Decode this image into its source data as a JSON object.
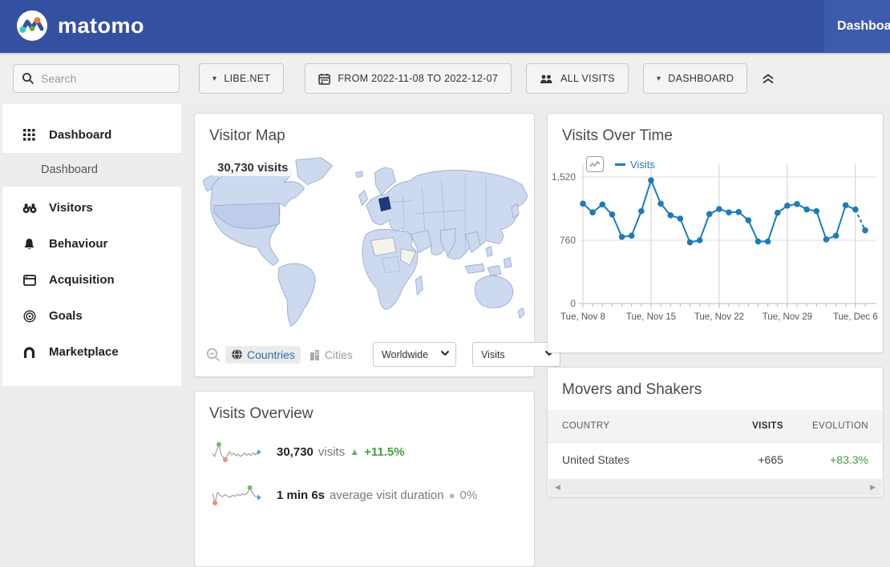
{
  "navbar": {
    "brand": "matomo",
    "menu": [
      {
        "label": "Dashboard"
      }
    ]
  },
  "toolbar": {
    "search_placeholder": "Search",
    "site_selector": "LIBE.NET",
    "date_range": "FROM 2022-11-08 TO 2022-12-07",
    "segment": "ALL VISITS",
    "dashboard_selector": "DASHBOARD"
  },
  "sidebar": {
    "items": [
      {
        "label": "Dashboard"
      },
      {
        "label": "Visitors"
      },
      {
        "label": "Behaviour"
      },
      {
        "label": "Acquisition"
      },
      {
        "label": "Goals"
      },
      {
        "label": "Marketplace"
      }
    ],
    "sub_item": {
      "label": "Dashboard"
    }
  },
  "visitor_map": {
    "title": "Visitor Map",
    "overlay_label": "30,730 visits",
    "countries_toggle": "Countries",
    "cities_toggle": "Cities",
    "region_select": "Worldwide",
    "metric_select": "Visits"
  },
  "visits_over_time": {
    "title": "Visits Over Time",
    "legend": "Visits"
  },
  "movers": {
    "title": "Movers and Shakers",
    "col_country": "COUNTRY",
    "col_visits": "VISITS",
    "col_evolution": "EVOLUTION",
    "rows": [
      {
        "country": "United States",
        "visits": "+665",
        "evolution": "+83.3%"
      }
    ]
  },
  "visits_overview": {
    "title": "Visits Overview",
    "rows": [
      {
        "value": "30,730",
        "label": "visits",
        "change": "+11.5%"
      },
      {
        "value": "1 min 6s",
        "label": "average visit duration",
        "change": "0%"
      }
    ]
  },
  "colors": {
    "navbar": "#3450a1",
    "navbar_active_item": "#3d5bad",
    "chart_line": "#1d7cb8",
    "positive_green": "#3f9f3f",
    "map_fill": "#cdd9ef",
    "map_highlight": "#1e3a7c"
  },
  "chart_data": [
    {
      "type": "line",
      "title": "Visits Over Time",
      "series": [
        {
          "name": "Visits",
          "values": [
            1200,
            1095,
            1190,
            1070,
            800,
            815,
            1110,
            1480,
            1200,
            1060,
            1020,
            735,
            760,
            1075,
            1135,
            1095,
            1100,
            1000,
            745,
            745,
            1090,
            1175,
            1195,
            1130,
            1110,
            770,
            815,
            1180,
            1130,
            880
          ]
        }
      ],
      "x": [
        "Nov 8",
        "Nov 9",
        "Nov 10",
        "Nov 11",
        "Nov 12",
        "Nov 13",
        "Nov 14",
        "Nov 15",
        "Nov 16",
        "Nov 17",
        "Nov 18",
        "Nov 19",
        "Nov 20",
        "Nov 21",
        "Nov 22",
        "Nov 23",
        "Nov 24",
        "Nov 25",
        "Nov 26",
        "Nov 27",
        "Nov 28",
        "Nov 29",
        "Nov 30",
        "Dec 1",
        "Dec 2",
        "Dec 3",
        "Dec 4",
        "Dec 5",
        "Dec 6",
        "Dec 7"
      ],
      "xticks_shown": [
        "Tue, Nov 8",
        "Tue, Nov 15",
        "Tue, Nov 22",
        "Tue, Nov 29",
        "Tue, Dec 6"
      ],
      "xtick_indices": [
        0,
        7,
        14,
        21,
        28
      ],
      "yticks": [
        "0",
        "760",
        "1,520"
      ],
      "ytick_values": [
        0,
        760,
        1520
      ],
      "ylim": [
        0,
        1520
      ],
      "legend": [
        "Visits"
      ],
      "legend_position": "top-left",
      "grid": true,
      "incomplete_last_segment_dashed": true,
      "line_color": "#1d7cb8"
    },
    {
      "type": "line",
      "title": "Visits sparkline (30,730 visits, +11.5%)",
      "values": [
        50,
        42,
        58,
        72,
        48,
        40,
        34,
        44,
        54,
        46,
        50,
        44,
        48,
        42,
        46,
        51,
        45,
        49,
        44,
        51,
        46,
        53
      ],
      "max_index": 3,
      "min_index": 6
    },
    {
      "type": "line",
      "title": "Average visit duration sparkline (1 min 6s, 0%)",
      "values": [
        55,
        28,
        58,
        50,
        46,
        52,
        48,
        44,
        50,
        47,
        53,
        49,
        55,
        51,
        57,
        72,
        58,
        48,
        44
      ],
      "max_index": 15,
      "min_index": 1
    }
  ]
}
